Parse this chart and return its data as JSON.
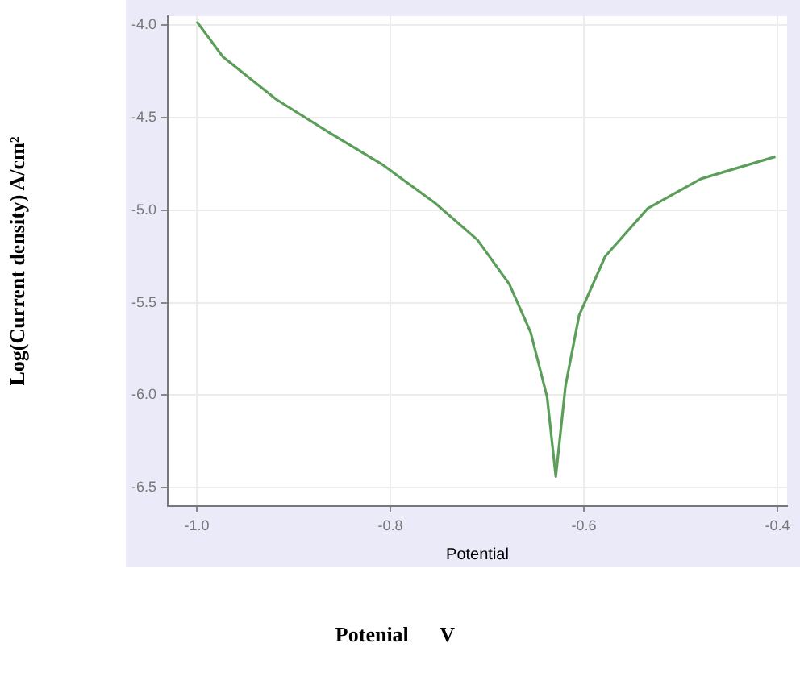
{
  "chart_data": {
    "type": "line",
    "xlabel": "Potential",
    "ylabel": "Log(Current density) A/cm²",
    "annotations": [
      "Potenial      V"
    ],
    "x": [
      -1.0,
      -0.973,
      -0.918,
      -0.863,
      -0.809,
      -0.754,
      -0.71,
      -0.677,
      -0.655,
      -0.638,
      -0.629,
      -0.619,
      -0.605,
      -0.578,
      -0.534,
      -0.479,
      -0.402
    ],
    "series": [
      {
        "color": "#5a9e5a",
        "values": [
          -3.98,
          -4.17,
          -4.4,
          -4.58,
          -4.75,
          -4.96,
          -5.16,
          -5.4,
          -5.66,
          -6.01,
          -6.44,
          -5.95,
          -5.57,
          -5.25,
          -4.99,
          -4.83,
          -4.71
        ]
      }
    ],
    "xlim": [
      -1.03,
      -0.39
    ],
    "xticks": [
      {
        "value": -1,
        "label": "-1.0"
      },
      -0.8,
      -0.6,
      -0.4
    ],
    "ylim": [
      -6.6,
      -3.95
    ],
    "yticks": [
      -6.5,
      {
        "value": -6,
        "label": "-6.0"
      },
      -5.5,
      {
        "value": -5,
        "label": "-5.0"
      },
      -4.5,
      {
        "value": -4,
        "label": "-4.0"
      }
    ],
    "grid": true,
    "legend": false,
    "marker": "none",
    "line_style": "solid"
  }
}
